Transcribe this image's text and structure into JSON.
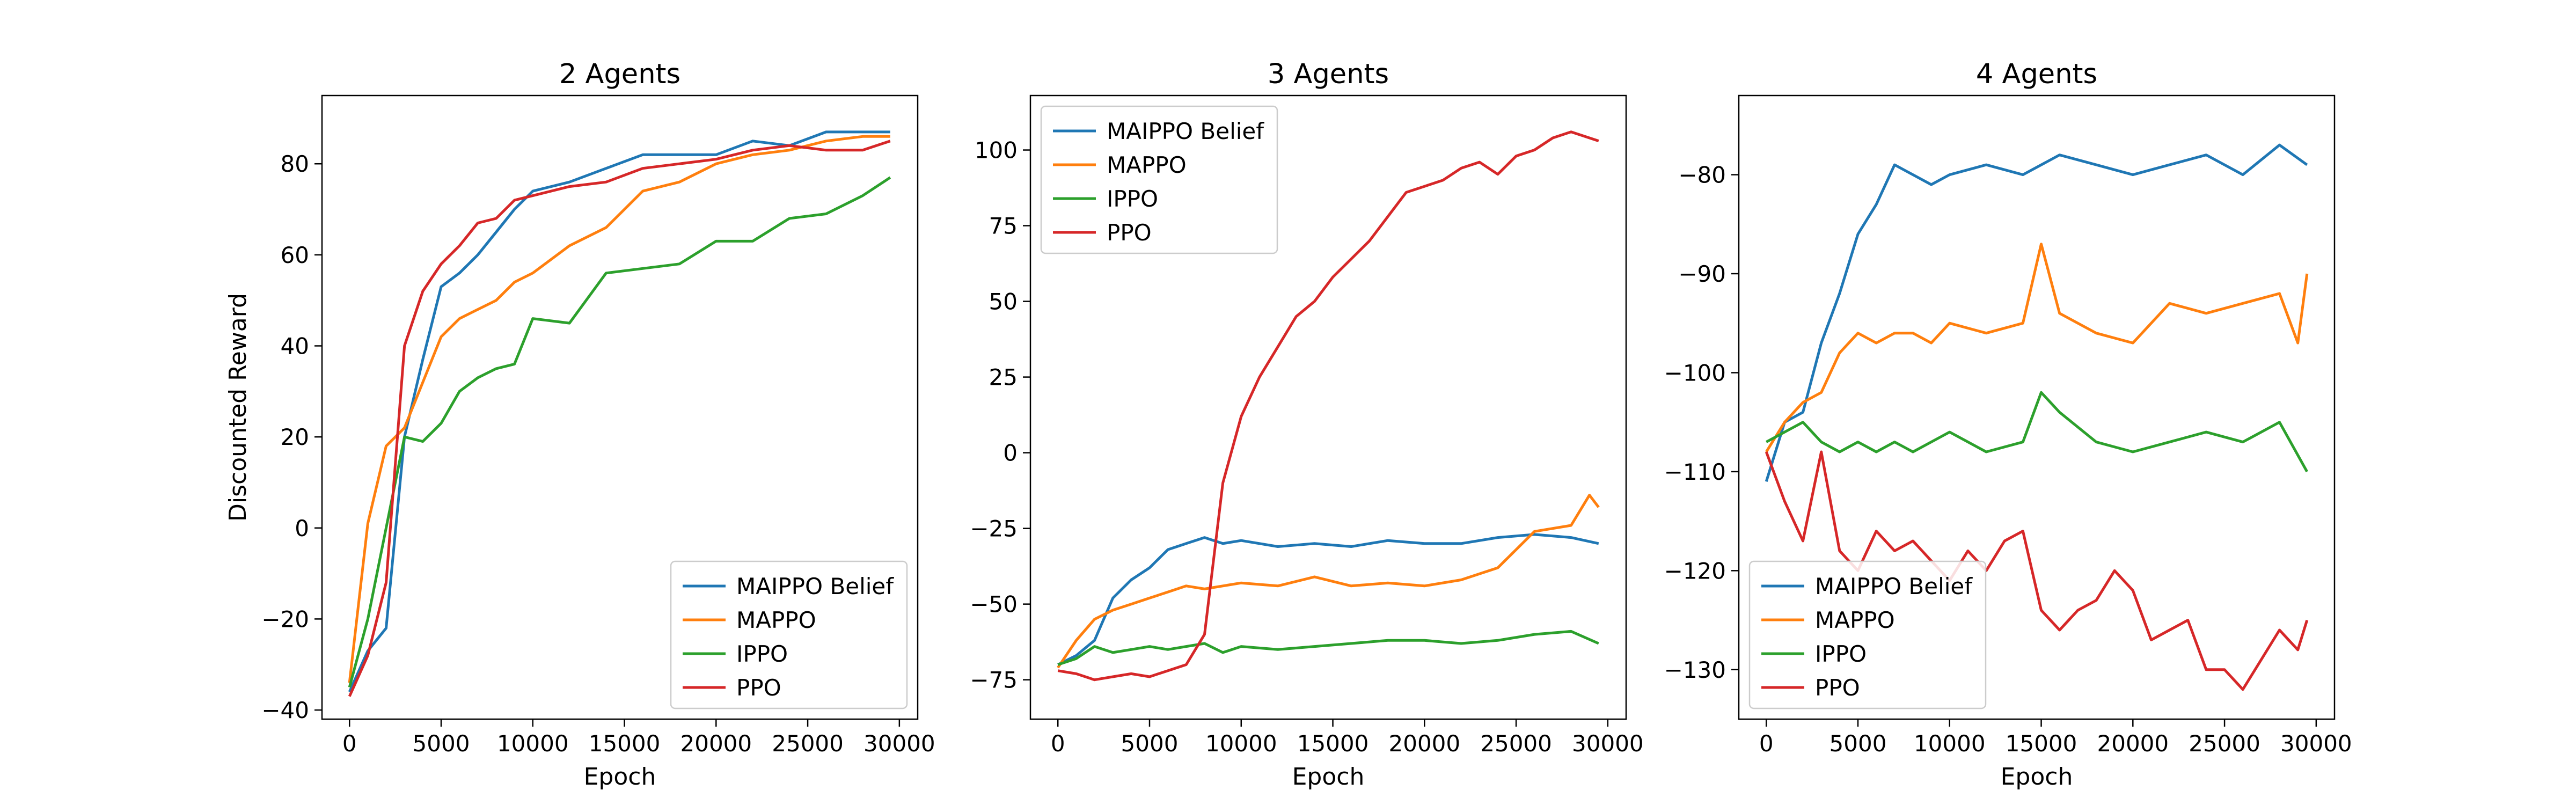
{
  "chart_data": [
    {
      "type": "line",
      "title": "2 Agents",
      "xlabel": "Epoch",
      "ylabel": "Discounted Reward",
      "xlim": [
        -1500,
        31000
      ],
      "ylim": [
        -42,
        95
      ],
      "xticks": [
        0,
        5000,
        10000,
        15000,
        20000,
        25000,
        30000
      ],
      "yticks": [
        -40,
        -20,
        0,
        20,
        40,
        60,
        80
      ],
      "legend_position": "lower-right",
      "grid": false,
      "series": [
        {
          "name": "MAIPPO Belief",
          "color": "#1f77b4",
          "x": [
            0,
            1000,
            2000,
            3000,
            4000,
            5000,
            6000,
            7000,
            8000,
            9000,
            10000,
            12000,
            14000,
            16000,
            18000,
            20000,
            22000,
            24000,
            26000,
            28000,
            29500
          ],
          "y": [
            -36,
            -27,
            -22,
            20,
            37,
            53,
            56,
            60,
            65,
            70,
            74,
            76,
            79,
            82,
            82,
            82,
            85,
            84,
            87,
            87,
            87
          ]
        },
        {
          "name": "MAPPO",
          "color": "#ff7f0e",
          "x": [
            0,
            1000,
            2000,
            3000,
            4000,
            5000,
            6000,
            7000,
            8000,
            9000,
            10000,
            12000,
            14000,
            16000,
            18000,
            20000,
            22000,
            24000,
            26000,
            28000,
            29500
          ],
          "y": [
            -34,
            1,
            18,
            22,
            32,
            42,
            46,
            48,
            50,
            54,
            56,
            62,
            66,
            74,
            76,
            80,
            82,
            83,
            85,
            86,
            86
          ]
        },
        {
          "name": "IPPO",
          "color": "#2ca02c",
          "x": [
            0,
            1000,
            2000,
            3000,
            4000,
            5000,
            6000,
            7000,
            8000,
            9000,
            10000,
            12000,
            14000,
            16000,
            18000,
            20000,
            22000,
            24000,
            26000,
            28000,
            29500
          ],
          "y": [
            -35,
            -20,
            0,
            20,
            19,
            23,
            30,
            33,
            35,
            36,
            46,
            45,
            56,
            57,
            58,
            63,
            63,
            68,
            69,
            73,
            77
          ]
        },
        {
          "name": "PPO",
          "color": "#d62728",
          "x": [
            0,
            1000,
            2000,
            3000,
            4000,
            5000,
            6000,
            7000,
            8000,
            9000,
            10000,
            12000,
            14000,
            16000,
            18000,
            20000,
            22000,
            24000,
            26000,
            28000,
            29500
          ],
          "y": [
            -37,
            -28,
            -12,
            40,
            52,
            58,
            62,
            67,
            68,
            72,
            73,
            75,
            76,
            79,
            80,
            81,
            83,
            84,
            83,
            83,
            85
          ]
        }
      ]
    },
    {
      "type": "line",
      "title": "3 Agents",
      "xlabel": "Epoch",
      "ylabel": "",
      "xlim": [
        -1500,
        31000
      ],
      "ylim": [
        -88,
        118
      ],
      "xticks": [
        0,
        5000,
        10000,
        15000,
        20000,
        25000,
        30000
      ],
      "yticks": [
        -75,
        -50,
        -25,
        0,
        25,
        50,
        75,
        100
      ],
      "legend_position": "upper-left",
      "grid": false,
      "series": [
        {
          "name": "MAIPPO Belief",
          "color": "#1f77b4",
          "x": [
            0,
            1000,
            2000,
            3000,
            4000,
            5000,
            6000,
            7000,
            8000,
            9000,
            10000,
            12000,
            14000,
            16000,
            18000,
            20000,
            22000,
            24000,
            26000,
            28000,
            29500
          ],
          "y": [
            -70,
            -67,
            -62,
            -48,
            -42,
            -38,
            -32,
            -30,
            -28,
            -30,
            -29,
            -31,
            -30,
            -31,
            -29,
            -30,
            -30,
            -28,
            -27,
            -28,
            -30
          ]
        },
        {
          "name": "MAPPO",
          "color": "#ff7f0e",
          "x": [
            0,
            1000,
            2000,
            3000,
            4000,
            5000,
            6000,
            7000,
            8000,
            9000,
            10000,
            12000,
            14000,
            16000,
            18000,
            20000,
            22000,
            24000,
            26000,
            28000,
            29000,
            29500
          ],
          "y": [
            -71,
            -62,
            -55,
            -52,
            -50,
            -48,
            -46,
            -44,
            -45,
            -44,
            -43,
            -44,
            -41,
            -44,
            -43,
            -44,
            -42,
            -38,
            -26,
            -24,
            -14,
            -18
          ]
        },
        {
          "name": "IPPO",
          "color": "#2ca02c",
          "x": [
            0,
            1000,
            2000,
            3000,
            4000,
            5000,
            6000,
            7000,
            8000,
            9000,
            10000,
            12000,
            14000,
            16000,
            18000,
            20000,
            22000,
            24000,
            26000,
            28000,
            29500
          ],
          "y": [
            -70,
            -68,
            -64,
            -66,
            -65,
            -64,
            -65,
            -64,
            -63,
            -66,
            -64,
            -65,
            -64,
            -63,
            -62,
            -62,
            -63,
            -62,
            -60,
            -59,
            -63
          ]
        },
        {
          "name": "PPO",
          "color": "#d62728",
          "x": [
            0,
            1000,
            2000,
            3000,
            4000,
            5000,
            6000,
            7000,
            8000,
            9000,
            10000,
            11000,
            12000,
            13000,
            14000,
            15000,
            16000,
            17000,
            18000,
            19000,
            20000,
            21000,
            22000,
            23000,
            24000,
            25000,
            26000,
            27000,
            28000,
            29000,
            29500
          ],
          "y": [
            -72,
            -73,
            -75,
            -74,
            -73,
            -74,
            -72,
            -70,
            -60,
            -10,
            12,
            25,
            35,
            45,
            50,
            58,
            64,
            70,
            78,
            86,
            88,
            90,
            94,
            96,
            92,
            98,
            100,
            104,
            106,
            104,
            103
          ]
        }
      ]
    },
    {
      "type": "line",
      "title": "4 Agents",
      "xlabel": "Epoch",
      "ylabel": "",
      "xlim": [
        -1500,
        31000
      ],
      "ylim": [
        -135,
        -72
      ],
      "xticks": [
        0,
        5000,
        10000,
        15000,
        20000,
        25000,
        30000
      ],
      "yticks": [
        -130,
        -120,
        -110,
        -100,
        -90,
        -80
      ],
      "legend_position": "lower-left",
      "grid": false,
      "series": [
        {
          "name": "MAIPPO Belief",
          "color": "#1f77b4",
          "x": [
            0,
            1000,
            2000,
            3000,
            4000,
            5000,
            6000,
            7000,
            8000,
            9000,
            10000,
            12000,
            14000,
            16000,
            18000,
            20000,
            22000,
            24000,
            26000,
            28000,
            29500
          ],
          "y": [
            -111,
            -105,
            -104,
            -97,
            -92,
            -86,
            -83,
            -79,
            -80,
            -81,
            -80,
            -79,
            -80,
            -78,
            -79,
            -80,
            -79,
            -78,
            -80,
            -77,
            -79
          ]
        },
        {
          "name": "MAPPO",
          "color": "#ff7f0e",
          "x": [
            0,
            1000,
            2000,
            3000,
            4000,
            5000,
            6000,
            7000,
            8000,
            9000,
            10000,
            12000,
            14000,
            15000,
            16000,
            18000,
            20000,
            22000,
            24000,
            26000,
            28000,
            29000,
            29500
          ],
          "y": [
            -108,
            -105,
            -103,
            -102,
            -98,
            -96,
            -97,
            -96,
            -96,
            -97,
            -95,
            -96,
            -95,
            -87,
            -94,
            -96,
            -97,
            -93,
            -94,
            -93,
            -92,
            -97,
            -90
          ]
        },
        {
          "name": "IPPO",
          "color": "#2ca02c",
          "x": [
            0,
            1000,
            2000,
            3000,
            4000,
            5000,
            6000,
            7000,
            8000,
            9000,
            10000,
            12000,
            14000,
            15000,
            16000,
            18000,
            20000,
            22000,
            24000,
            26000,
            28000,
            29500
          ],
          "y": [
            -107,
            -106,
            -105,
            -107,
            -108,
            -107,
            -108,
            -107,
            -108,
            -107,
            -106,
            -108,
            -107,
            -102,
            -104,
            -107,
            -108,
            -107,
            -106,
            -107,
            -105,
            -110
          ]
        },
        {
          "name": "PPO",
          "color": "#d62728",
          "x": [
            0,
            1000,
            2000,
            3000,
            4000,
            5000,
            6000,
            7000,
            8000,
            9000,
            10000,
            11000,
            12000,
            13000,
            14000,
            15000,
            16000,
            17000,
            18000,
            19000,
            20000,
            21000,
            22000,
            23000,
            24000,
            25000,
            26000,
            27000,
            28000,
            29000,
            29500
          ],
          "y": [
            -108,
            -113,
            -117,
            -108,
            -118,
            -120,
            -116,
            -118,
            -117,
            -119,
            -121,
            -118,
            -120,
            -117,
            -116,
            -124,
            -126,
            -124,
            -123,
            -120,
            -122,
            -127,
            -126,
            -125,
            -130,
            -130,
            -132,
            -129,
            -126,
            -128,
            -125
          ]
        }
      ]
    }
  ]
}
